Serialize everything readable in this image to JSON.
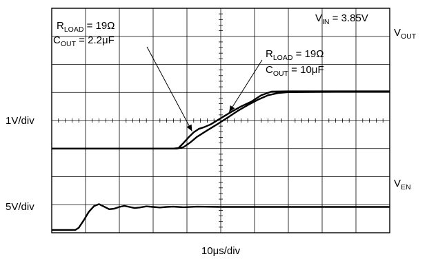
{
  "chart_data": {
    "type": "line",
    "grid": true,
    "grid_divisions": {
      "x": 10,
      "y": 8
    },
    "x_scale_label": "10μs/div",
    "left_scale_labels": [
      "1V/div",
      "5V/div"
    ],
    "condition": {
      "text": "V",
      "sub": "IN",
      "rest": " = 3.85V"
    },
    "series": [
      {
        "label": {
          "text": "V",
          "sub": "OUT"
        },
        "trace_color": "#000000",
        "points": [
          [
            0,
            5
          ],
          [
            3.6,
            5
          ],
          [
            3.75,
            4.98
          ],
          [
            3.9,
            4.8
          ],
          [
            4.05,
            4.6
          ],
          [
            4.2,
            4.42
          ],
          [
            4.35,
            4.3
          ],
          [
            4.5,
            4.24
          ],
          [
            4.7,
            4.14
          ],
          [
            5.0,
            3.92
          ],
          [
            5.3,
            3.7
          ],
          [
            5.6,
            3.5
          ],
          [
            5.9,
            3.33
          ],
          [
            6.2,
            3.1
          ],
          [
            6.5,
            2.97
          ],
          [
            7.0,
            2.96
          ],
          [
            8.0,
            2.96
          ],
          [
            10,
            2.96
          ]
        ]
      },
      {
        "trace_color": "#000000",
        "points": [
          [
            0,
            5
          ],
          [
            3.7,
            5
          ],
          [
            3.9,
            4.95
          ],
          [
            4.1,
            4.78
          ],
          [
            4.3,
            4.58
          ],
          [
            4.6,
            4.35
          ],
          [
            4.9,
            4.13
          ],
          [
            5.2,
            3.9
          ],
          [
            5.5,
            3.66
          ],
          [
            5.8,
            3.45
          ],
          [
            6.1,
            3.26
          ],
          [
            6.4,
            3.1
          ],
          [
            6.7,
            3.02
          ],
          [
            7.0,
            2.99
          ],
          [
            8.0,
            2.98
          ],
          [
            10,
            2.97
          ]
        ]
      },
      {
        "label": {
          "text": "V",
          "sub": "EN"
        },
        "trace_color": "#000000",
        "points": [
          [
            0,
            7.9
          ],
          [
            0.7,
            7.9
          ],
          [
            0.8,
            7.82
          ],
          [
            0.95,
            7.55
          ],
          [
            1.1,
            7.25
          ],
          [
            1.25,
            7.05
          ],
          [
            1.4,
            6.98
          ],
          [
            1.55,
            7.07
          ],
          [
            1.7,
            7.16
          ],
          [
            1.85,
            7.14
          ],
          [
            2.0,
            7.08
          ],
          [
            2.15,
            7.04
          ],
          [
            2.3,
            7.08
          ],
          [
            2.45,
            7.12
          ],
          [
            2.6,
            7.1
          ],
          [
            2.8,
            7.06
          ],
          [
            3.0,
            7.08
          ],
          [
            3.2,
            7.1
          ],
          [
            3.4,
            7.08
          ],
          [
            3.6,
            7.07
          ],
          [
            3.9,
            7.09
          ],
          [
            4.3,
            7.07
          ],
          [
            5,
            7.08
          ],
          [
            10,
            7.08
          ]
        ]
      }
    ],
    "annotations": [
      {
        "lines": [
          {
            "text": "R",
            "sub": "LOAD",
            "rest": " = 19Ω"
          },
          {
            "text": "C",
            "sub": "OUT",
            "rest": " = 2.2μF"
          }
        ],
        "arrow_to": [
          4.15,
          4.38
        ]
      },
      {
        "lines": [
          {
            "text": "R",
            "sub": "LOAD",
            "rest": " = 19Ω"
          },
          {
            "text": "C",
            "sub": "OUT",
            "rest": " = 10μF"
          }
        ],
        "arrow_to": [
          5.25,
          3.7
        ]
      }
    ]
  }
}
